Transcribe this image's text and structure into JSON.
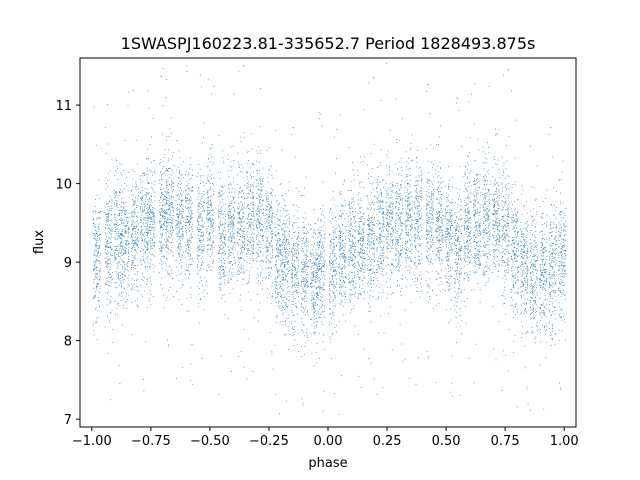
{
  "chart_data": {
    "type": "scatter",
    "title": "1SWASPJ160223.81-335652.7 Period 1828493.875s",
    "xlabel": "phase",
    "ylabel": "flux",
    "xlim": [
      -1.05,
      1.05
    ],
    "ylim": [
      6.9,
      11.6
    ],
    "xticks": [
      -1.0,
      -0.75,
      -0.5,
      -0.25,
      0.0,
      0.25,
      0.5,
      0.75,
      1.0
    ],
    "xtick_labels": [
      "−1.00",
      "−0.75",
      "−0.50",
      "−0.25",
      "0.00",
      "0.25",
      "0.50",
      "0.75",
      "1.00"
    ],
    "yticks": [
      7,
      8,
      9,
      10,
      11
    ],
    "ytick_labels": [
      "7",
      "8",
      "9",
      "10",
      "11"
    ],
    "grid": false,
    "point_color": "#1f77b4",
    "series": [
      {
        "clusters": [
          {
            "x": -0.98,
            "y": 9.05
          },
          {
            "x": -0.93,
            "y": 9.2
          },
          {
            "x": -0.89,
            "y": 9.3
          },
          {
            "x": -0.86,
            "y": 9.25
          },
          {
            "x": -0.82,
            "y": 9.3
          },
          {
            "x": -0.78,
            "y": 9.45
          },
          {
            "x": -0.75,
            "y": 9.5
          },
          {
            "x": -0.7,
            "y": 9.55
          },
          {
            "x": -0.67,
            "y": 9.6
          },
          {
            "x": -0.63,
            "y": 9.55
          },
          {
            "x": -0.59,
            "y": 9.5
          },
          {
            "x": -0.54,
            "y": 9.4
          },
          {
            "x": -0.5,
            "y": 9.5
          },
          {
            "x": -0.45,
            "y": 9.3
          },
          {
            "x": -0.41,
            "y": 9.4
          },
          {
            "x": -0.37,
            "y": 9.45
          },
          {
            "x": -0.33,
            "y": 9.55
          },
          {
            "x": -0.29,
            "y": 9.5
          },
          {
            "x": -0.25,
            "y": 9.4
          },
          {
            "x": -0.21,
            "y": 9.1
          },
          {
            "x": -0.18,
            "y": 8.95
          },
          {
            "x": -0.14,
            "y": 8.9
          },
          {
            "x": -0.1,
            "y": 8.85
          },
          {
            "x": -0.06,
            "y": 8.8
          },
          {
            "x": -0.03,
            "y": 8.9
          },
          {
            "x": 0.02,
            "y": 8.95
          },
          {
            "x": 0.06,
            "y": 9.05
          },
          {
            "x": 0.1,
            "y": 9.15
          },
          {
            "x": 0.14,
            "y": 9.2
          },
          {
            "x": 0.18,
            "y": 9.3
          },
          {
            "x": 0.22,
            "y": 9.35
          },
          {
            "x": 0.26,
            "y": 9.45
          },
          {
            "x": 0.3,
            "y": 9.5
          },
          {
            "x": 0.34,
            "y": 9.55
          },
          {
            "x": 0.38,
            "y": 9.5
          },
          {
            "x": 0.43,
            "y": 9.45
          },
          {
            "x": 0.47,
            "y": 9.5
          },
          {
            "x": 0.51,
            "y": 9.35
          },
          {
            "x": 0.55,
            "y": 9.1
          },
          {
            "x": 0.59,
            "y": 9.4
          },
          {
            "x": 0.63,
            "y": 9.45
          },
          {
            "x": 0.67,
            "y": 9.5
          },
          {
            "x": 0.71,
            "y": 9.55
          },
          {
            "x": 0.75,
            "y": 9.4
          },
          {
            "x": 0.79,
            "y": 9.1
          },
          {
            "x": 0.83,
            "y": 8.95
          },
          {
            "x": 0.87,
            "y": 8.9
          },
          {
            "x": 0.91,
            "y": 8.85
          },
          {
            "x": 0.95,
            "y": 8.9
          },
          {
            "x": 0.99,
            "y": 9.05
          }
        ],
        "spread": 0.4,
        "points_per_cluster": 190
      }
    ]
  }
}
